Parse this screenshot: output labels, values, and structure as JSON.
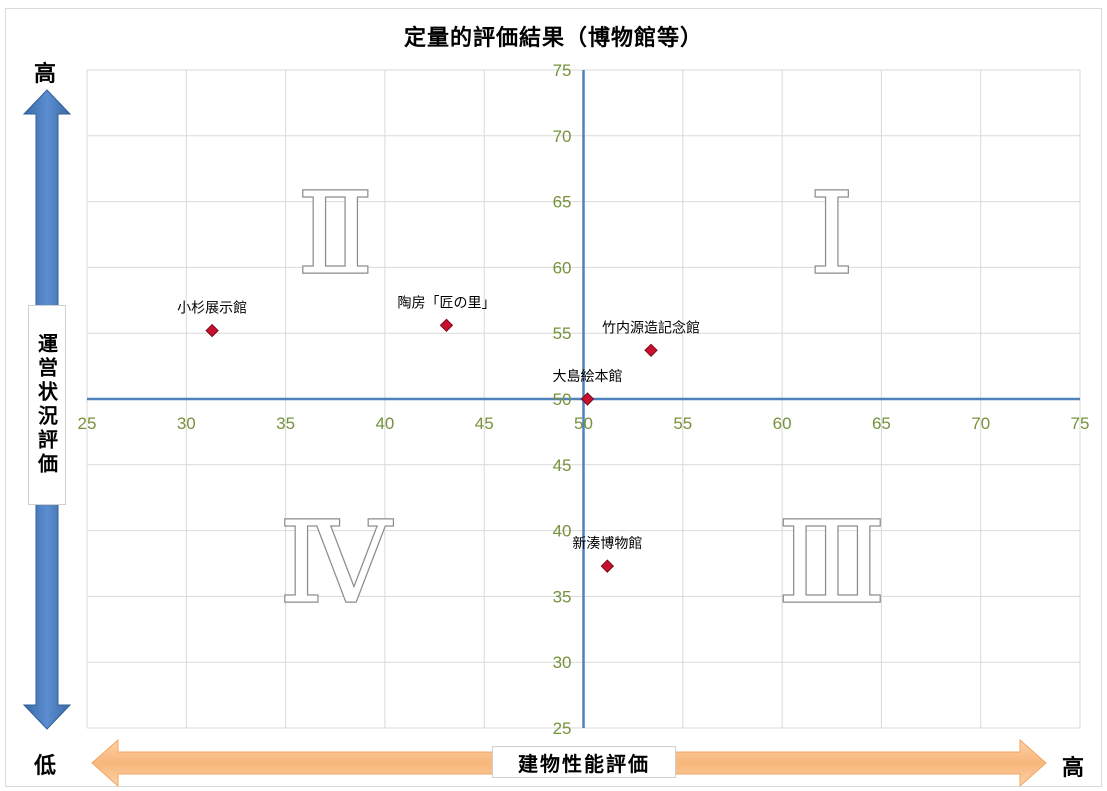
{
  "chart_data": {
    "type": "scatter",
    "title": "定量的評価結果（博物館等）",
    "xlabel": "建物性能評価",
    "ylabel": "運営状況評価",
    "xlim": [
      25,
      75
    ],
    "ylim": [
      25,
      75
    ],
    "x_ticks": [
      "25",
      "30",
      "35",
      "40",
      "45",
      "50",
      "55",
      "60",
      "65",
      "70",
      "75"
    ],
    "y_ticks": [
      "25",
      "30",
      "35",
      "40",
      "45",
      "50",
      "55",
      "60",
      "65",
      "70",
      "75"
    ],
    "x_crosses_at": 50,
    "y_crosses_at": 50,
    "grid": true,
    "marker": "diamond",
    "marker_color": "#c8102e",
    "points": [
      {
        "label": "小杉展示館",
        "x": 31.3,
        "y": 55.2
      },
      {
        "label": "陶房「匠の里」",
        "x": 43.1,
        "y": 55.6
      },
      {
        "label": "竹内源造記念館",
        "x": 53.4,
        "y": 53.7
      },
      {
        "label": "大島絵本館",
        "x": 50.2,
        "y": 50.0
      },
      {
        "label": "新湊博物館",
        "x": 51.2,
        "y": 37.3
      }
    ],
    "quadrants": [
      {
        "label": "Ⅰ",
        "position": "top-right"
      },
      {
        "label": "Ⅱ",
        "position": "top-left"
      },
      {
        "label": "Ⅲ",
        "position": "bottom-right"
      },
      {
        "label": "Ⅳ",
        "position": "bottom-left"
      }
    ],
    "y_axis_ends": {
      "high": "高",
      "low": "低"
    },
    "x_axis_ends": {
      "low": "低",
      "high": "高"
    }
  },
  "colors": {
    "axis_line": "#4f81bd",
    "tick_label": "#76923c",
    "gridline": "#d9d9d9",
    "point": "#c8102e",
    "y_arrow": "#4f81bd",
    "x_arrow": "#fac090"
  }
}
